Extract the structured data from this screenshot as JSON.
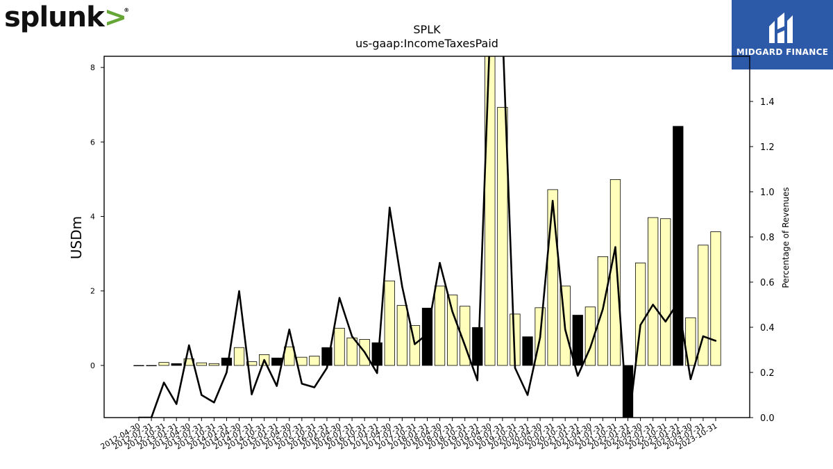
{
  "brand": {
    "name": "splunk",
    "mark": ">",
    "reg": "®"
  },
  "badge": {
    "name": "MIDGARD FINANCE",
    "background": "#2d5aa8"
  },
  "colors": {
    "bar_normal": "#ffffbb",
    "bar_highlight": "#000000",
    "bar_edge": "#000000",
    "line": "#000000"
  },
  "chart_data": {
    "type": "bar",
    "title": "SPLK",
    "subtitle": "us-gaap:IncomeTaxesPaid",
    "ylabel": "USDm",
    "y2label": "Percentage of Revenues",
    "ylim": [
      -1.4,
      8.3
    ],
    "y2lim": [
      0.0,
      1.6
    ],
    "yticks": [
      0,
      2,
      4,
      6,
      8
    ],
    "y2ticks": [
      0.0,
      0.2,
      0.4,
      0.6,
      0.8,
      1.0,
      1.2,
      1.4
    ],
    "categories": [
      "2012-04-30",
      "2012-07-31",
      "2012-10-31",
      "2013-01-31",
      "2013-04-30",
      "2013-07-31",
      "2013-10-31",
      "2014-01-31",
      "2014-04-30",
      "2014-07-31",
      "2014-10-31",
      "2015-01-31",
      "2015-04-30",
      "2015-07-31",
      "2015-10-31",
      "2016-01-31",
      "2016-04-30",
      "2016-07-31",
      "2016-10-31",
      "2017-01-31",
      "2017-04-30",
      "2017-07-31",
      "2017-10-31",
      "2018-01-31",
      "2018-04-30",
      "2018-07-31",
      "2018-10-31",
      "2019-01-31",
      "2019-04-30",
      "2019-07-31",
      "2019-10-31",
      "2020-01-31",
      "2020-04-30",
      "2020-07-31",
      "2020-10-31",
      "2021-01-31",
      "2021-04-30",
      "2021-07-31",
      "2021-10-31",
      "2022-01-31",
      "2022-04-30",
      "2022-07-31",
      "2022-10-31",
      "2023-01-31",
      "2023-04-30",
      "2023-07-31",
      "2023-10-31"
    ],
    "series": [
      {
        "type": "bar",
        "axis": "left",
        "values": [
          0.0,
          0.0,
          0.08,
          0.05,
          0.18,
          0.07,
          0.05,
          0.2,
          0.48,
          0.1,
          0.29,
          0.2,
          0.5,
          0.22,
          0.25,
          0.48,
          1.0,
          0.74,
          0.7,
          0.61,
          2.27,
          1.61,
          1.07,
          1.54,
          2.13,
          1.89,
          1.59,
          1.02,
          8.3,
          6.93,
          1.38,
          0.77,
          1.55,
          4.72,
          2.13,
          1.35,
          1.57,
          2.92,
          4.99,
          -1.4,
          2.75,
          3.97,
          3.94,
          6.42,
          1.28,
          3.23,
          3.59
        ],
        "highlight": [
          false,
          false,
          false,
          true,
          false,
          false,
          false,
          true,
          false,
          false,
          false,
          true,
          false,
          false,
          false,
          true,
          false,
          false,
          false,
          true,
          false,
          false,
          false,
          true,
          false,
          false,
          false,
          true,
          false,
          false,
          false,
          true,
          false,
          false,
          false,
          true,
          false,
          false,
          false,
          true,
          false,
          false,
          false,
          true,
          false,
          false,
          false
        ]
      },
      {
        "type": "line",
        "axis": "right",
        "values": [
          0.0,
          0.0,
          0.155,
          0.06,
          0.32,
          0.1,
          0.067,
          0.2,
          0.56,
          0.103,
          0.255,
          0.14,
          0.39,
          0.15,
          0.134,
          0.22,
          0.53,
          0.36,
          0.29,
          0.197,
          0.93,
          0.58,
          0.325,
          0.37,
          0.685,
          0.47,
          0.32,
          0.165,
          1.7,
          1.72,
          0.22,
          0.1,
          0.355,
          0.96,
          0.39,
          0.185,
          0.31,
          0.48,
          0.755,
          -0.05,
          0.41,
          0.5,
          0.425,
          0.51,
          0.17,
          0.36,
          0.34
        ]
      }
    ]
  }
}
